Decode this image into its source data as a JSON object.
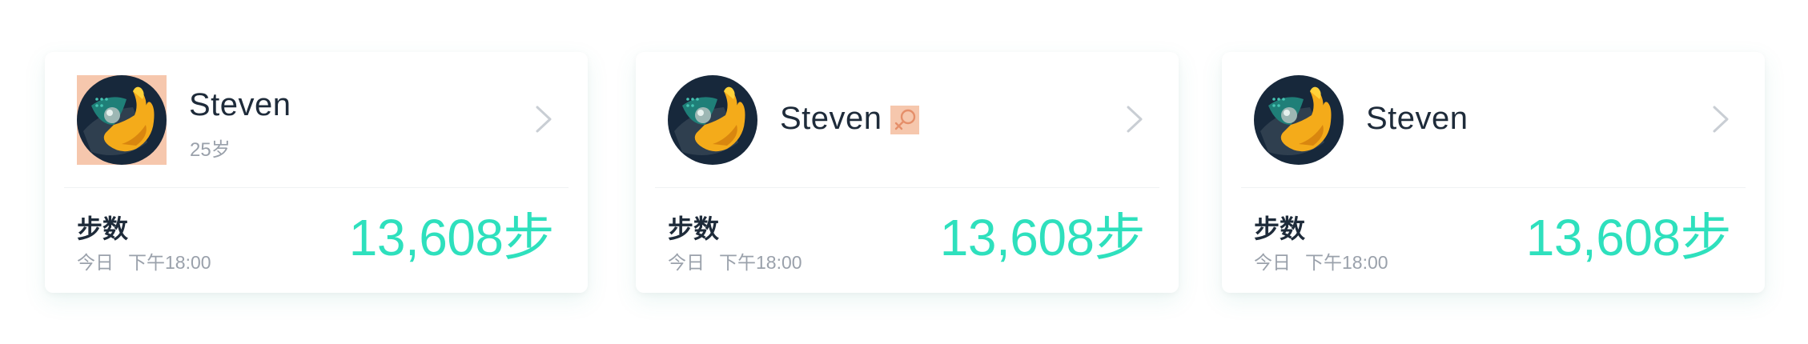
{
  "accent_color": "#2ee0bd",
  "highlight_color": "#f6c7ad",
  "cards": [
    {
      "name": "Steven",
      "age": "25岁",
      "steps_title": "步数",
      "time_day": "今日",
      "time_clock": "下午18:00",
      "steps_value": "13,608步",
      "avatar_icon": "hand-holding-ball-avatar",
      "chevron_icon": "chevron-right-icon"
    },
    {
      "name": "Steven",
      "gender_icon": "female-icon",
      "steps_title": "步数",
      "time_day": "今日",
      "time_clock": "下午18:00",
      "steps_value": "13,608步",
      "avatar_icon": "hand-holding-ball-avatar",
      "chevron_icon": "chevron-right-icon"
    },
    {
      "name": "Steven",
      "steps_title": "步数",
      "time_day": "今日",
      "time_clock": "下午18:00",
      "steps_value": "13,608步",
      "avatar_icon": "hand-holding-ball-avatar",
      "chevron_icon": "chevron-right-icon"
    }
  ]
}
